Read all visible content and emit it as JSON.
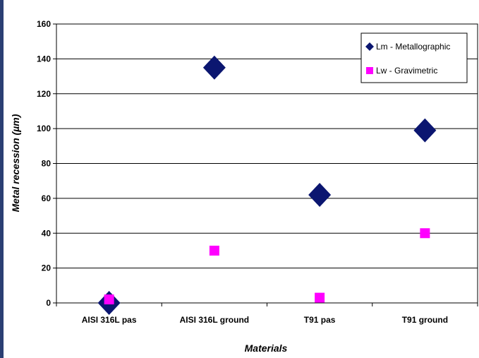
{
  "chart_data": {
    "type": "scatter",
    "categories": [
      "AISI 316L pas",
      "AISI 316L ground",
      "T91 pas",
      "T91 ground"
    ],
    "series": [
      {
        "name": "Lm - Metallographic",
        "values": [
          0,
          135,
          62,
          99
        ],
        "color": "#0b1670",
        "marker": "diamond"
      },
      {
        "name": "Lw - Gravimetric",
        "values": [
          2,
          30,
          3,
          40
        ],
        "color": "#ff00ff",
        "marker": "square"
      }
    ],
    "xlabel": "Materials",
    "ylabel": "Metal recession (µm)",
    "ylim": [
      0,
      160
    ],
    "yticks": [
      0,
      20,
      40,
      60,
      80,
      100,
      120,
      140,
      160
    ],
    "grid": true,
    "legend_position": "top-right"
  }
}
